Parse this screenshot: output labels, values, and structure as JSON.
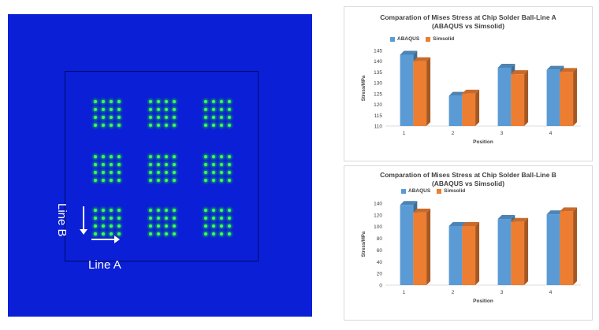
{
  "left_panel": {
    "line_b_label": "Line B",
    "line_a_label": "Line A",
    "colors": {
      "background": "#0b1fd6",
      "solder_ball": "#39ff5a"
    }
  },
  "chart_data": [
    {
      "type": "bar",
      "title": "Comparation of Mises Stress at Chip Solder Ball-Line A",
      "subtitle": "(ABAQUS vs Simsolid)",
      "xlabel": "Position",
      "ylabel": "Stress/MPa",
      "categories": [
        "1",
        "2",
        "3",
        "4"
      ],
      "series": [
        {
          "name": "ABAQUS",
          "color": "#5b9bd5",
          "values": [
            143,
            124,
            137,
            136
          ]
        },
        {
          "name": "Simsolid",
          "color": "#ed7d31",
          "values": [
            140,
            125,
            134,
            135
          ]
        }
      ],
      "ylim": [
        110,
        145
      ],
      "yticks": [
        110,
        115,
        120,
        125,
        130,
        135,
        140,
        145
      ],
      "legend_position": "top-left",
      "grid": false
    },
    {
      "type": "bar",
      "title": "Comparation of Mises Stress at Chip Solder Ball-Line B",
      "subtitle": "(ABAQUS vs Simsolid)",
      "xlabel": "Position",
      "ylabel": "Stress/MPa",
      "categories": [
        "1",
        "2",
        "3",
        "4"
      ],
      "series": [
        {
          "name": "ABAQUS",
          "color": "#5b9bd5",
          "values": [
            137,
            101,
            113,
            121
          ]
        },
        {
          "name": "Simsolid",
          "color": "#ed7d31",
          "values": [
            124,
            101,
            108,
            126
          ]
        }
      ],
      "ylim": [
        0,
        140
      ],
      "yticks": [
        0,
        20,
        40,
        60,
        80,
        100,
        120,
        140
      ],
      "legend_position": "top-left",
      "grid": false
    }
  ]
}
